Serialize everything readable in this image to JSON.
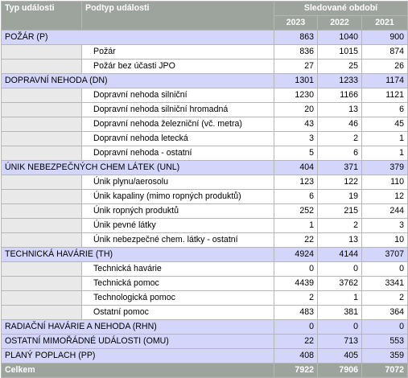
{
  "headers": {
    "type": "Typ události",
    "subtype": "Podtyp události",
    "period": "Sledované období",
    "years": [
      "2023",
      "2022",
      "2021"
    ]
  },
  "rows": [
    {
      "kind": "cat",
      "label": "POŽÁR (P)",
      "values": [
        "863",
        "1040",
        "900"
      ]
    },
    {
      "kind": "sub",
      "label": "Požár",
      "values": [
        "836",
        "1015",
        "874"
      ]
    },
    {
      "kind": "sub",
      "label": "Požár bez účasti JPO",
      "values": [
        "27",
        "25",
        "26"
      ]
    },
    {
      "kind": "cat",
      "label": "DOPRAVNÍ NEHODA (DN)",
      "values": [
        "1301",
        "1233",
        "1174"
      ]
    },
    {
      "kind": "sub",
      "label": "Dopravní nehoda  silniční",
      "values": [
        "1230",
        "1166",
        "1121"
      ]
    },
    {
      "kind": "sub",
      "label": "Dopravní nehoda  silniční hromadná",
      "values": [
        "20",
        "13",
        "6"
      ]
    },
    {
      "kind": "sub",
      "label": "Dopravní nehoda  železniční (vč. metra)",
      "values": [
        "43",
        "46",
        "45"
      ]
    },
    {
      "kind": "sub",
      "label": "Dopravní nehoda  letecká",
      "values": [
        "3",
        "2",
        "1"
      ]
    },
    {
      "kind": "sub",
      "label": "Dopravní nehoda - ostatní",
      "values": [
        "5",
        "6",
        "1"
      ]
    },
    {
      "kind": "cat",
      "label": "ÚNIK  NEBEZPEČNÝCH CHEM LÁTEK (UNL)",
      "values": [
        "404",
        "371",
        "379"
      ]
    },
    {
      "kind": "sub",
      "label": "Únik plynu/aerosolu",
      "values": [
        "123",
        "122",
        "110"
      ]
    },
    {
      "kind": "sub",
      "label": "Únik kapaliny (mimo ropných produktů)",
      "values": [
        "6",
        "19",
        "12"
      ]
    },
    {
      "kind": "sub",
      "label": "Únik ropných produktů",
      "values": [
        "252",
        "215",
        "244"
      ]
    },
    {
      "kind": "sub",
      "label": "Únik pevné látky",
      "values": [
        "1",
        "2",
        "3"
      ]
    },
    {
      "kind": "sub",
      "label": "Únik nebezpečné chem. látky - ostatní",
      "values": [
        "22",
        "13",
        "10"
      ]
    },
    {
      "kind": "cat",
      "label": "TECHNICKÁ HAVÁRIE (TH)",
      "values": [
        "4924",
        "4144",
        "3707"
      ]
    },
    {
      "kind": "sub",
      "label": "Technická havárie",
      "values": [
        "0",
        "0",
        "0"
      ]
    },
    {
      "kind": "sub",
      "label": "Technická pomoc",
      "values": [
        "4439",
        "3762",
        "3341"
      ]
    },
    {
      "kind": "sub",
      "label": "Technologická pomoc",
      "values": [
        "2",
        "1",
        "2"
      ]
    },
    {
      "kind": "sub",
      "label": "Ostatní pomoc",
      "values": [
        "483",
        "381",
        "364"
      ]
    },
    {
      "kind": "cat",
      "label": "RADIAČNÍ HAVÁRIE A NEHODA (RHN)",
      "values": [
        "0",
        "0",
        "0"
      ]
    },
    {
      "kind": "cat",
      "label": "OSTATNÍ MIMOŘÁDNÉ UDÁLOSTI (OMU)",
      "values": [
        "22",
        "713",
        "553"
      ]
    },
    {
      "kind": "cat",
      "label": "PLANÝ POPLACH (PP)",
      "values": [
        "408",
        "405",
        "359"
      ]
    },
    {
      "kind": "total",
      "label": "Celkem",
      "values": [
        "7922",
        "7906",
        "7072"
      ]
    }
  ]
}
